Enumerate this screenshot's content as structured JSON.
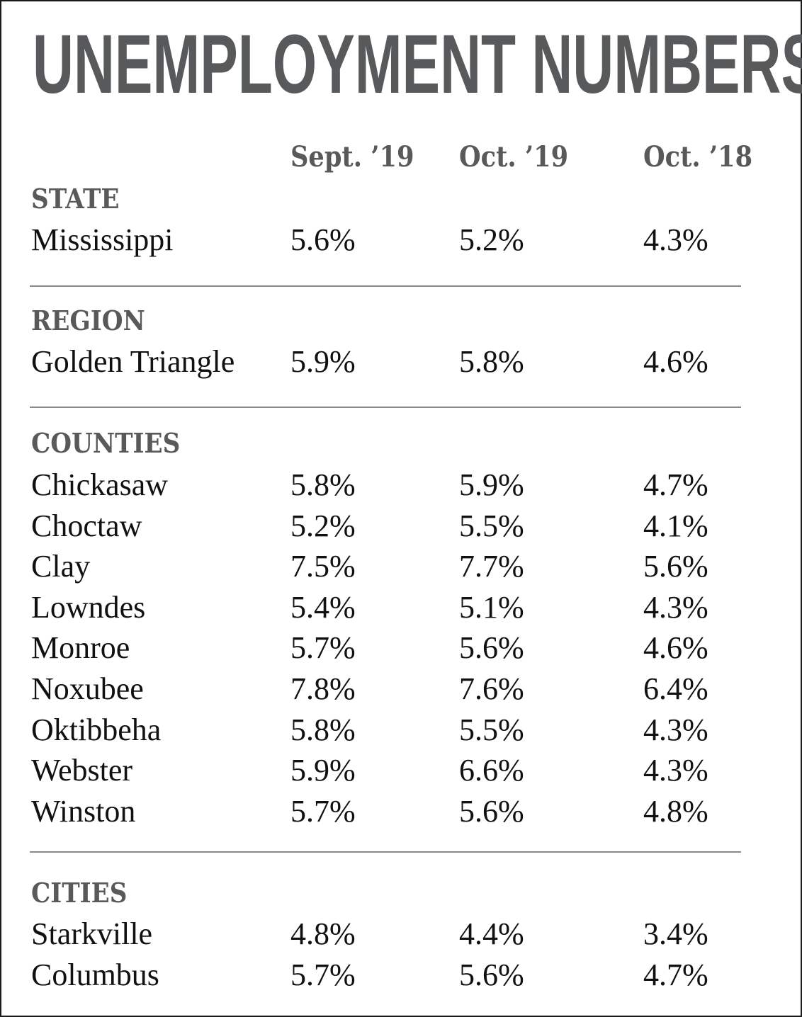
{
  "title": "UNEMPLOYMENT NUMBERS",
  "colors": {
    "heading": "#58595b",
    "text": "#111111",
    "rule": "#8a8a8a"
  },
  "chart_data": {
    "type": "table",
    "title": "UNEMPLOYMENT NUMBERS",
    "columns": [
      "Sept. ’19",
      "Oct. ’19",
      "Oct. ’18"
    ],
    "sections": [
      {
        "name": "STATE",
        "rows": [
          {
            "label": "Mississippi",
            "values": [
              "5.6%",
              "5.2%",
              "4.3%"
            ]
          }
        ]
      },
      {
        "name": "REGION",
        "rows": [
          {
            "label": "Golden Triangle",
            "values": [
              "5.9%",
              "5.8%",
              "4.6%"
            ]
          }
        ]
      },
      {
        "name": "COUNTIES",
        "rows": [
          {
            "label": "Chickasaw",
            "values": [
              "5.8%",
              "5.9%",
              "4.7%"
            ]
          },
          {
            "label": "Choctaw",
            "values": [
              "5.2%",
              "5.5%",
              "4.1%"
            ]
          },
          {
            "label": "Clay",
            "values": [
              "7.5%",
              "7.7%",
              "5.6%"
            ]
          },
          {
            "label": "Lowndes",
            "values": [
              "5.4%",
              "5.1%",
              "4.3%"
            ]
          },
          {
            "label": "Monroe",
            "values": [
              "5.7%",
              "5.6%",
              "4.6%"
            ]
          },
          {
            "label": "Noxubee",
            "values": [
              "7.8%",
              "7.6%",
              "6.4%"
            ]
          },
          {
            "label": "Oktibbeha",
            "values": [
              "5.8%",
              "5.5%",
              "4.3%"
            ]
          },
          {
            "label": "Webster",
            "values": [
              "5.9%",
              "6.6%",
              "4.3%"
            ]
          },
          {
            "label": "Winston",
            "values": [
              "5.7%",
              "5.6%",
              "4.8%"
            ]
          }
        ]
      },
      {
        "name": "CITIES",
        "rows": [
          {
            "label": "Starkville",
            "values": [
              "4.8%",
              "4.4%",
              "3.4%"
            ]
          },
          {
            "label": "Columbus",
            "values": [
              "5.7%",
              "5.6%",
              "4.7%"
            ]
          }
        ]
      }
    ]
  }
}
